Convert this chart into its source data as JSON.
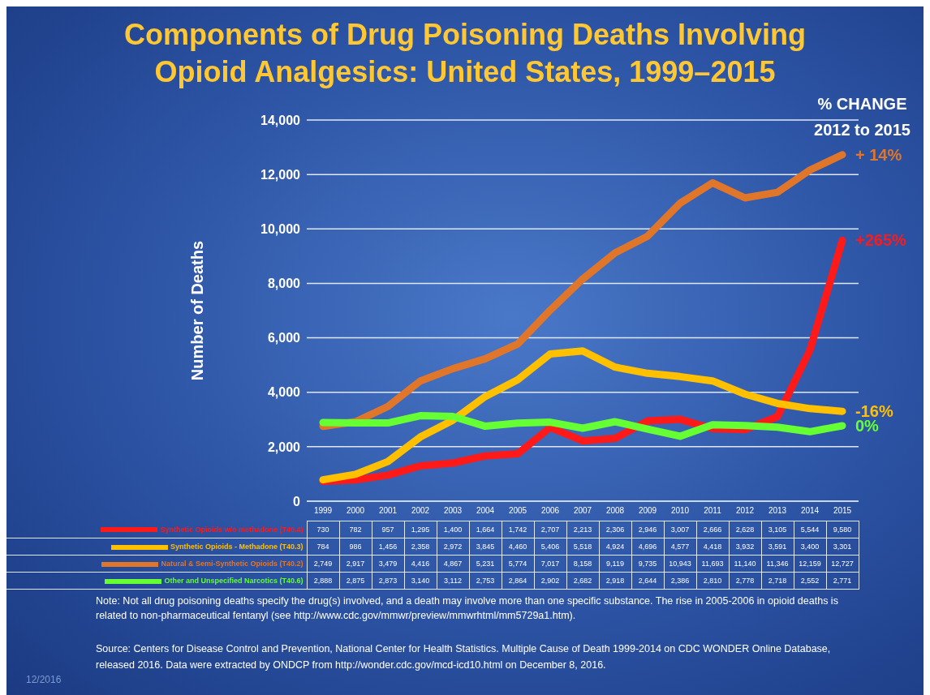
{
  "chart_data": {
    "type": "line",
    "title": "Components of Drug Poisoning Deaths Involving Opioid Analgesics:  United States, 1999–2015",
    "ylabel": "Number of Deaths",
    "categories": [
      "1999",
      "2000",
      "2001",
      "2002",
      "2003",
      "2004",
      "2005",
      "2006",
      "2007",
      "2008",
      "2009",
      "2010",
      "2011",
      "2012",
      "2013",
      "2014",
      "2015"
    ],
    "series": [
      {
        "name": "Synthetic Opioids w/o methadone (T40.4)",
        "color": "#ff1a1a",
        "values": [
          730,
          782,
          957,
          1295,
          1400,
          1664,
          1742,
          2707,
          2213,
          2306,
          2946,
          3007,
          2666,
          2628,
          3105,
          5544,
          9580
        ],
        "value_labels": [
          "730",
          "782",
          "957",
          "1,295",
          "1,400",
          "1,664",
          "1,742",
          "2,707",
          "2,213",
          "2,306",
          "2,946",
          "3,007",
          "2,666",
          "2,628",
          "3,105",
          "5,544",
          "9,580"
        ]
      },
      {
        "name": "Synthetic Opioids - Methadone (T40.3)",
        "color": "#ffc000",
        "values": [
          784,
          986,
          1456,
          2358,
          2972,
          3845,
          4460,
          5406,
          5518,
          4924,
          4696,
          4577,
          4418,
          3932,
          3591,
          3400,
          3301
        ],
        "value_labels": [
          "784",
          "986",
          "1,456",
          "2,358",
          "2,972",
          "3,845",
          "4,460",
          "5,406",
          "5,518",
          "4,924",
          "4,696",
          "4,577",
          "4,418",
          "3,932",
          "3,591",
          "3,400",
          "3,301"
        ]
      },
      {
        "name": "Natural & Semi-Synthetic Opioids (T40.2)",
        "color": "#e0762a",
        "values": [
          2749,
          2917,
          3479,
          4416,
          4867,
          5231,
          5774,
          7017,
          8158,
          9119,
          9735,
          10943,
          11693,
          11140,
          11346,
          12159,
          12727
        ],
        "value_labels": [
          "2,749",
          "2,917",
          "3,479",
          "4,416",
          "4,867",
          "5,231",
          "5,774",
          "7,017",
          "8,158",
          "9,119",
          "9,735",
          "10,943",
          "11,693",
          "11,140",
          "11,346",
          "12,159",
          "12,727"
        ]
      },
      {
        "name": "Other and Unspecified Narcotics (T40.6)",
        "color": "#66ff33",
        "values": [
          2888,
          2875,
          2873,
          3140,
          3112,
          2753,
          2864,
          2902,
          2682,
          2918,
          2644,
          2386,
          2810,
          2778,
          2718,
          2552,
          2771
        ],
        "value_labels": [
          "2,888",
          "2,875",
          "2,873",
          "3,140",
          "3,112",
          "2,753",
          "2,864",
          "2,902",
          "2,682",
          "2,918",
          "2,644",
          "2,386",
          "2,810",
          "2,778",
          "2,718",
          "2,552",
          "2,771"
        ]
      }
    ],
    "ylim": [
      0,
      14000
    ],
    "yticks": [
      0,
      {
        "value": 2000,
        "label": "2,000"
      },
      {
        "value": 4000,
        "label": "4,000"
      },
      {
        "value": 6000,
        "label": "6,000"
      },
      {
        "value": 8000,
        "label": "8,000"
      },
      {
        "value": 10000,
        "label": "10,000"
      },
      {
        "value": 12000,
        "label": "12,000"
      },
      {
        "value": 14000,
        "label": "14,000"
      }
    ],
    "grid": "y",
    "legend": "bottom",
    "marker": "none",
    "line_style": "solid",
    "annotations": [
      "% CHANGE\n2012 to 2015",
      {
        "text": "+ 14%",
        "x": "2015",
        "y": 12727
      },
      {
        "text": "+265%",
        "x": "2015",
        "y": 9580
      },
      {
        "text": "-16%",
        "x": "2015",
        "y": 3301
      },
      {
        "text": "0%",
        "x": "2015",
        "y": 2771
      },
      "Note: Not all drug poisoning  deaths specify the drug(s) involved, and a death may involve more than one specific substance.  The rise in 2005-2006 in opioid deaths is related to non-pharmaceutical fentanyl (see http://www.cdc.gov/mmwr/preview/mmwrhtml/mm5729a1.htm).",
      "Source:  Centers for Disease Control and Prevention, National Center for Health Statistics. Multiple Cause of Death 1999-2014 on CDC WONDER Online Database, released 2016.  Data were extracted by ONDCP from http://wonder.cdc.gov/mcd-icd10.html on December 8, 2016.",
      "12/2016"
    ]
  }
}
